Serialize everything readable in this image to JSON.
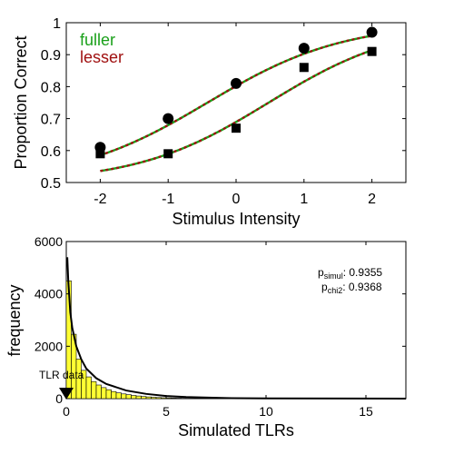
{
  "chart_data": [
    {
      "type": "scatter",
      "xlabel": "Stimulus Intensity",
      "ylabel": "Proportion Correct",
      "xlim": [
        -2.5,
        2.5
      ],
      "ylim": [
        0.5,
        1.0
      ],
      "xticks": [
        "-2",
        "-1",
        "0",
        "1",
        "2"
      ],
      "yticks": [
        "0.5",
        "0.6",
        "0.7",
        "0.8",
        "0.9",
        "1"
      ],
      "legend_placement": "top-left",
      "legend": [
        {
          "label": "fuller",
          "color": "#1aa01a"
        },
        {
          "label": "lesser",
          "color": "#a01010"
        }
      ],
      "series": [
        {
          "marker": "circle",
          "x": [
            -2,
            -1,
            0,
            1,
            2
          ],
          "y": [
            0.61,
            0.7,
            0.81,
            0.92,
            0.97
          ]
        },
        {
          "marker": "square",
          "x": [
            -2,
            -1,
            0,
            1,
            2
          ],
          "y": [
            0.59,
            0.59,
            0.67,
            0.86,
            0.91
          ]
        }
      ],
      "fits": [
        {
          "guess": 0.5,
          "alpha": -0.42,
          "beta": 1.0,
          "x_range": [
            -2,
            2
          ]
        },
        {
          "guess": 0.5,
          "alpha": 0.48,
          "beta": 0.97,
          "x_range": [
            -2,
            2
          ]
        }
      ]
    },
    {
      "type": "histogram",
      "xlabel": "Simulated TLRs",
      "ylabel": "frequency",
      "xlim": [
        0,
        17
      ],
      "ylim": [
        0,
        6000
      ],
      "xticks": [
        "0",
        "5",
        "10",
        "15"
      ],
      "yticks": [
        "0",
        "2000",
        "4000",
        "6000"
      ],
      "bin_width": 0.25,
      "bar_color": "#ffff33",
      "counts": [
        4500,
        2460,
        1510,
        1080,
        830,
        650,
        520,
        420,
        340,
        270,
        220,
        180,
        150,
        120,
        100,
        80,
        65,
        52,
        42,
        34,
        28,
        22,
        18,
        14,
        11,
        9,
        7,
        6,
        5,
        4
      ],
      "curve_x": [
        0.05,
        0.1,
        0.2,
        0.3,
        0.5,
        0.75,
        1,
        1.5,
        2,
        3,
        4,
        5,
        6,
        8,
        10,
        17
      ],
      "curve_y": [
        5400,
        4500,
        3300,
        2700,
        2000,
        1500,
        1150,
        780,
        560,
        310,
        180,
        100,
        60,
        20,
        8,
        0
      ],
      "annotation": "TLR data",
      "annotation_x": 0,
      "p_simul_label": "p",
      "p_simul_sub": "simul",
      "p_simul_value": ": 0.9355",
      "p_chi2_label": "p",
      "p_chi2_sub": "chi2",
      "p_chi2_value": ": 0.9368"
    }
  ]
}
